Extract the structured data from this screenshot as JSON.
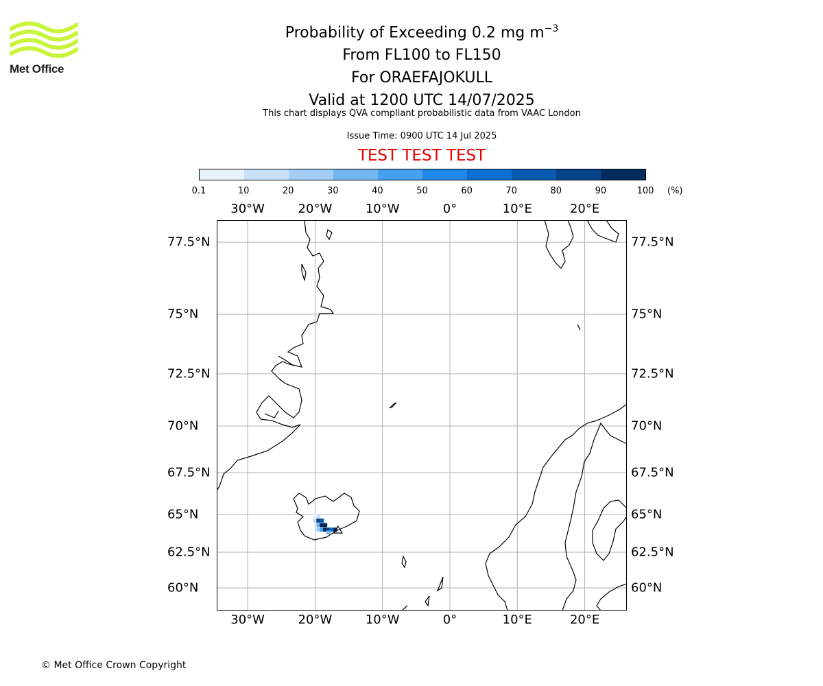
{
  "logo": {
    "name": "Met Office",
    "logo_color": "#c8f53c"
  },
  "title": {
    "line1": "Probability of Exceeding 0.2 mg m",
    "line1_sup": "−3",
    "line2": "From FL100 to FL150",
    "line3": "For ORAEFAJOKULL",
    "line4": "Valid at 1200 UTC 14/07/2025"
  },
  "subtitle": "This chart displays QVA compliant probabilistic data from VAAC London",
  "issue_time": "Issue Time: 0900 UTC 14 Jul 2025",
  "warning": "TEST TEST TEST",
  "colorbar": {
    "ticks": [
      "0.1",
      "10",
      "20",
      "30",
      "40",
      "50",
      "60",
      "70",
      "80",
      "90",
      "100"
    ],
    "unit": "(%)",
    "colors": [
      "#e8f3fd",
      "#c8e2f9",
      "#a2cef5",
      "#72b6f1",
      "#45a0ef",
      "#2189e8",
      "#0c6fd2",
      "#085ab2",
      "#06448a",
      "#022c5e"
    ]
  },
  "map": {
    "lon_labels": [
      "30°W",
      "20°W",
      "10°W",
      "0°",
      "10°E",
      "20°E"
    ],
    "lat_labels": [
      "77.5°N",
      "75°N",
      "72.5°N",
      "70°N",
      "67.5°N",
      "65°N",
      "62.5°N",
      "60°N"
    ],
    "gridline_color": "#b0b0b0",
    "coastline_color": "#000000"
  },
  "chart_data": {
    "type": "heatmap",
    "description_values_unit": "%",
    "x_label": "",
    "y_label": "",
    "lon_ticks": [
      -30,
      -20,
      -10,
      0,
      10,
      20
    ],
    "lat_ticks": [
      77.5,
      75,
      72.5,
      70,
      67.5,
      65,
      62.5,
      60
    ],
    "cells": [
      {
        "lon": -20.0,
        "lat": 64.9,
        "value": 5
      },
      {
        "lon": -19.5,
        "lat": 64.9,
        "value": 15
      },
      {
        "lon": -20.0,
        "lat": 64.6,
        "value": 10
      },
      {
        "lon": -19.5,
        "lat": 64.6,
        "value": 85
      },
      {
        "lon": -19.0,
        "lat": 64.6,
        "value": 75
      },
      {
        "lon": -19.5,
        "lat": 64.3,
        "value": 35
      },
      {
        "lon": -19.0,
        "lat": 64.3,
        "value": 95
      },
      {
        "lon": -18.5,
        "lat": 64.3,
        "value": 90
      },
      {
        "lon": -19.5,
        "lat": 64.0,
        "value": 20
      },
      {
        "lon": -19.0,
        "lat": 64.0,
        "value": 45
      },
      {
        "lon": -18.5,
        "lat": 64.0,
        "value": 95
      },
      {
        "lon": -18.0,
        "lat": 64.0,
        "value": 85
      },
      {
        "lon": -17.5,
        "lat": 64.0,
        "value": 60
      },
      {
        "lon": -18.0,
        "lat": 63.8,
        "value": 30
      },
      {
        "lon": -17.0,
        "lat": 64.0,
        "value": 95
      }
    ]
  },
  "copyright": "© Met Office Crown Copyright"
}
